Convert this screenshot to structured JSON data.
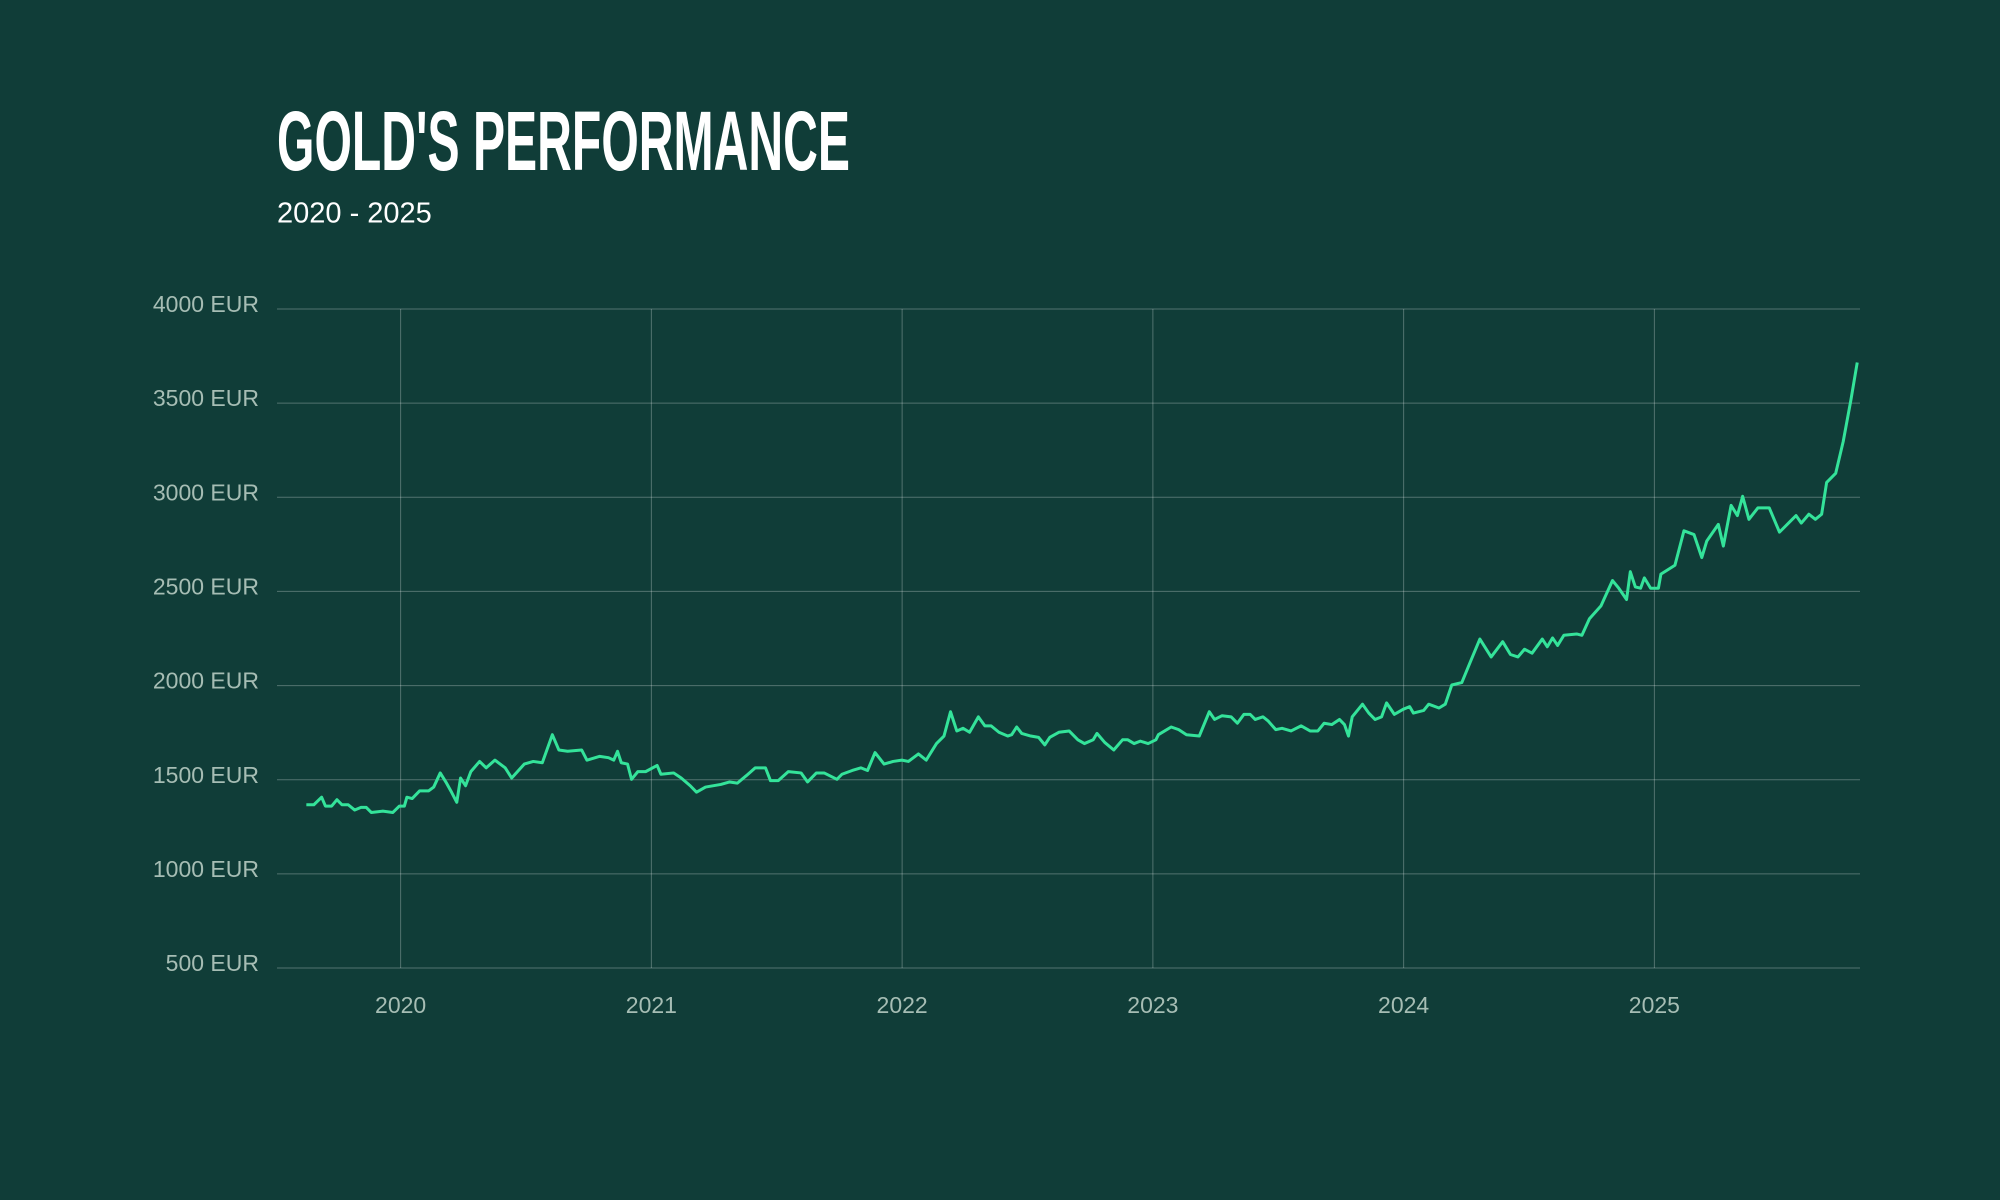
{
  "chart_data": {
    "type": "line",
    "title": "GOLD'S PERFORMANCE",
    "subtitle": "2020 - 2025",
    "color": "#34e39a",
    "grid": true,
    "x": [
      2019.624,
      2019.654,
      2019.685,
      2019.7,
      2019.725,
      2019.746,
      2019.766,
      2019.791,
      2019.817,
      2019.842,
      2019.863,
      2019.883,
      2019.929,
      2019.969,
      2019.995,
      2020.015,
      2020.025,
      2020.046,
      2020.076,
      2020.112,
      2020.132,
      2020.158,
      2020.183,
      2020.203,
      2020.224,
      2020.239,
      2020.259,
      2020.28,
      2020.315,
      2020.341,
      2020.376,
      2020.417,
      2020.443,
      2020.493,
      2020.529,
      2020.565,
      2020.605,
      2020.631,
      2020.666,
      2020.722,
      2020.743,
      2020.794,
      2020.829,
      2020.85,
      2020.865,
      2020.88,
      2020.905,
      2020.921,
      2020.946,
      2020.977,
      2021.023,
      2021.038,
      2021.089,
      2021.119,
      2021.155,
      2021.18,
      2021.216,
      2021.277,
      2021.312,
      2021.343,
      2021.379,
      2021.414,
      2021.455,
      2021.475,
      2021.506,
      2021.546,
      2021.597,
      2021.623,
      2021.658,
      2021.689,
      2021.719,
      2021.74,
      2021.76,
      2021.801,
      2021.836,
      2021.862,
      2021.892,
      2021.928,
      2021.964,
      2021.999,
      2022.025,
      2022.065,
      2022.096,
      2022.137,
      2022.167,
      2022.193,
      2022.218,
      2022.243,
      2022.269,
      2022.304,
      2022.33,
      2022.355,
      2022.386,
      2022.421,
      2022.437,
      2022.457,
      2022.477,
      2022.513,
      2022.544,
      2022.569,
      2022.589,
      2022.625,
      2022.666,
      2022.701,
      2022.727,
      2022.762,
      2022.777,
      2022.808,
      2022.844,
      2022.879,
      2022.9,
      2022.925,
      2022.95,
      2022.981,
      2023.012,
      2023.022,
      2023.073,
      2023.103,
      2023.134,
      2023.185,
      2023.225,
      2023.246,
      2023.276,
      2023.312,
      2023.337,
      2023.363,
      2023.388,
      2023.408,
      2023.439,
      2023.459,
      2023.49,
      2023.515,
      2023.551,
      2023.591,
      2023.627,
      2023.658,
      2023.683,
      2023.714,
      2023.744,
      2023.764,
      2023.78,
      2023.795,
      2023.836,
      2023.861,
      2023.886,
      2023.912,
      2023.932,
      2023.963,
      2023.998,
      2024.024,
      2024.039,
      2024.08,
      2024.1,
      2024.141,
      2024.166,
      2024.192,
      2024.232,
      2024.268,
      2024.304,
      2024.349,
      2024.395,
      2024.426,
      2024.456,
      2024.482,
      2024.512,
      2024.553,
      2024.573,
      2024.594,
      2024.614,
      2024.639,
      2024.69,
      2024.711,
      2024.741,
      2024.787,
      2024.833,
      2024.858,
      2024.889,
      2024.904,
      2024.924,
      2024.945,
      2024.96,
      2024.985,
      2025.016,
      2025.026,
      2025.082,
      2025.118,
      2025.158,
      2025.189,
      2025.209,
      2025.255,
      2025.275,
      2025.306,
      2025.331,
      2025.352,
      2025.377,
      2025.413,
      2025.458,
      2025.499,
      2025.54,
      2025.565,
      2025.586,
      2025.616,
      2025.642,
      2025.667,
      2025.687,
      2025.723,
      2025.753,
      2025.784,
      2025.809
    ],
    "values": [
      1367,
      1367,
      1407,
      1360,
      1360,
      1394,
      1367,
      1367,
      1339,
      1353,
      1353,
      1326,
      1333,
      1326,
      1360,
      1360,
      1407,
      1400,
      1441,
      1441,
      1461,
      1536,
      1482,
      1434,
      1380,
      1509,
      1468,
      1543,
      1597,
      1563,
      1604,
      1563,
      1509,
      1583,
      1597,
      1590,
      1739,
      1658,
      1651,
      1658,
      1604,
      1624,
      1617,
      1604,
      1651,
      1590,
      1583,
      1502,
      1543,
      1543,
      1576,
      1529,
      1536,
      1509,
      1468,
      1434,
      1461,
      1475,
      1488,
      1482,
      1522,
      1563,
      1563,
      1495,
      1495,
      1543,
      1536,
      1488,
      1536,
      1536,
      1516,
      1502,
      1529,
      1549,
      1563,
      1549,
      1644,
      1583,
      1597,
      1604,
      1597,
      1637,
      1604,
      1692,
      1732,
      1861,
      1759,
      1773,
      1752,
      1834,
      1786,
      1786,
      1752,
      1732,
      1739,
      1780,
      1746,
      1732,
      1725,
      1685,
      1725,
      1752,
      1759,
      1712,
      1692,
      1712,
      1746,
      1698,
      1658,
      1712,
      1712,
      1692,
      1705,
      1692,
      1712,
      1739,
      1780,
      1766,
      1739,
      1732,
      1861,
      1820,
      1840,
      1834,
      1800,
      1847,
      1847,
      1820,
      1834,
      1813,
      1766,
      1773,
      1759,
      1786,
      1759,
      1759,
      1800,
      1793,
      1820,
      1793,
      1732,
      1834,
      1901,
      1854,
      1820,
      1834,
      1908,
      1847,
      1874,
      1888,
      1854,
      1868,
      1901,
      1881,
      1901,
      2003,
      2016,
      2132,
      2247,
      2152,
      2233,
      2165,
      2152,
      2193,
      2172,
      2247,
      2206,
      2253,
      2213,
      2267,
      2274,
      2267,
      2355,
      2423,
      2558,
      2517,
      2457,
      2605,
      2524,
      2517,
      2572,
      2517,
      2517,
      2592,
      2639,
      2822,
      2802,
      2680,
      2768,
      2856,
      2741,
      2957,
      2903,
      3005,
      2883,
      2944,
      2944,
      2815,
      2870,
      2903,
      2863,
      2910,
      2883,
      2910,
      3079,
      3127,
      3296,
      3519,
      3716
    ],
    "xlim": [
      2019.507,
      2025.82
    ],
    "xticks": [
      2020,
      2021,
      2022,
      2023,
      2024,
      2025
    ],
    "ylim": [
      500,
      4000
    ],
    "yticks": [
      {
        "value": 500,
        "label": "500 EUR"
      },
      {
        "value": 1000,
        "label": "1000 EUR"
      },
      {
        "value": 1500,
        "label": "1500 EUR"
      },
      {
        "value": 2000,
        "label": "2000 EUR"
      },
      {
        "value": 2500,
        "label": "2500 EUR"
      },
      {
        "value": 3000,
        "label": "3000 EUR"
      },
      {
        "value": 3500,
        "label": "3500 EUR"
      },
      {
        "value": 4000,
        "label": "4000 EUR"
      }
    ]
  }
}
